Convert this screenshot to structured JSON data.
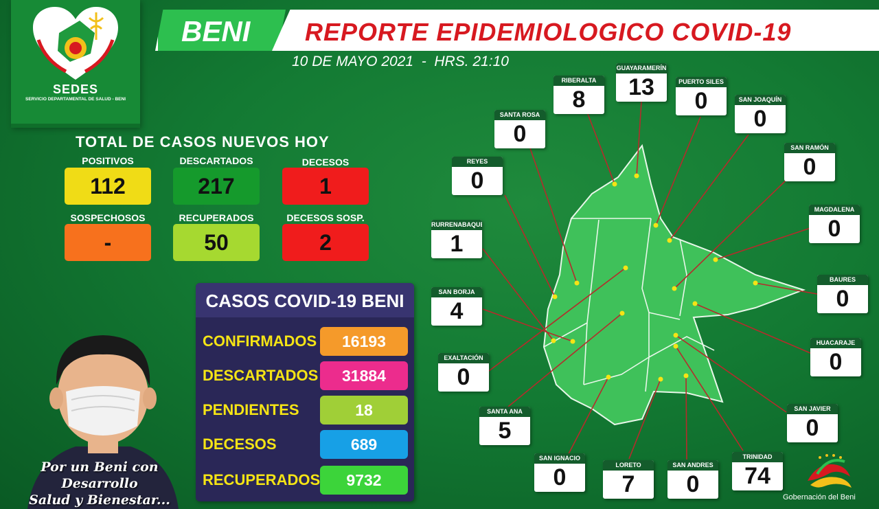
{
  "logo": {
    "brand": "SEDES",
    "subtitle": "SERVICIO DEPARTAMENTAL DE SALUD - BENI"
  },
  "header": {
    "region": "BENI",
    "title": "REPORTE EPIDEMIOLOGICO COVID-19",
    "date": "10 DE MAYO 2021  -  HRS. 21:10"
  },
  "today": {
    "title": "TOTAL DE CASOS NUEVOS HOY",
    "items": [
      {
        "label": "POSITIVOS",
        "value": "112",
        "color": "#f0dc16"
      },
      {
        "label": "DESCARTADOS",
        "value": "217",
        "color": "#159a2c"
      },
      {
        "label": "DECESOS",
        "value": "1",
        "color": "#f01c1c"
      },
      {
        "label": "SOSPECHOSOS",
        "value": "-",
        "color": "#f7711d"
      },
      {
        "label": "RECUPERADOS",
        "value": "50",
        "color": "#a6d930"
      },
      {
        "label": "DECESOS SOSP.",
        "value": "2",
        "color": "#f01c1c"
      }
    ]
  },
  "cumulative": {
    "title": "CASOS COVID-19 BENI",
    "rows": [
      {
        "label": "CONFIRMADOS",
        "value": "16193",
        "color": "#f59a2a"
      },
      {
        "label": "DESCARTADOS",
        "value": "31884",
        "color": "#ec2c8d"
      },
      {
        "label": "PENDIENTES",
        "value": "18",
        "color": "#a0cf37"
      },
      {
        "label": "DECESOS",
        "value": "689",
        "color": "#17a0e6"
      },
      {
        "label": "RECUPERADOS",
        "value": "9732",
        "color": "#3cd43a"
      }
    ]
  },
  "slogan": {
    "line1": "Por un Beni con Desarrollo",
    "line2": "Salud y Bienestar..."
  },
  "municipalities": [
    {
      "name": "RIBERALTA",
      "value": "8"
    },
    {
      "name": "GUAYARAMERÍN",
      "value": "13"
    },
    {
      "name": "PUERTO SILES",
      "value": "0"
    },
    {
      "name": "SAN JOAQUÍN",
      "value": "0"
    },
    {
      "name": "SANTA ROSA",
      "value": "0"
    },
    {
      "name": "SAN RAMÓN",
      "value": "0"
    },
    {
      "name": "REYES",
      "value": "0"
    },
    {
      "name": "MAGDALENA",
      "value": "0"
    },
    {
      "name": "RURRENABAQUE",
      "value": "1"
    },
    {
      "name": "BAURES",
      "value": "0"
    },
    {
      "name": "SAN BORJA",
      "value": "4"
    },
    {
      "name": "HUACARAJE",
      "value": "0"
    },
    {
      "name": "EXALTACIÓN",
      "value": "0"
    },
    {
      "name": "SANTA ANA",
      "value": "5"
    },
    {
      "name": "SAN JAVIER",
      "value": "0"
    },
    {
      "name": "SAN IGNACIO",
      "value": "0"
    },
    {
      "name": "LORETO",
      "value": "7"
    },
    {
      "name": "SAN ANDRES",
      "value": "0"
    },
    {
      "name": "TRINIDAD",
      "value": "74"
    }
  ],
  "footer": {
    "org": "Gobernación del Beni"
  },
  "colors": {
    "background": "#137a33",
    "header_red": "#d71920",
    "map_fill": "#3fc15a",
    "leader_line": "#b52b2b",
    "dot": "#f5e415"
  }
}
